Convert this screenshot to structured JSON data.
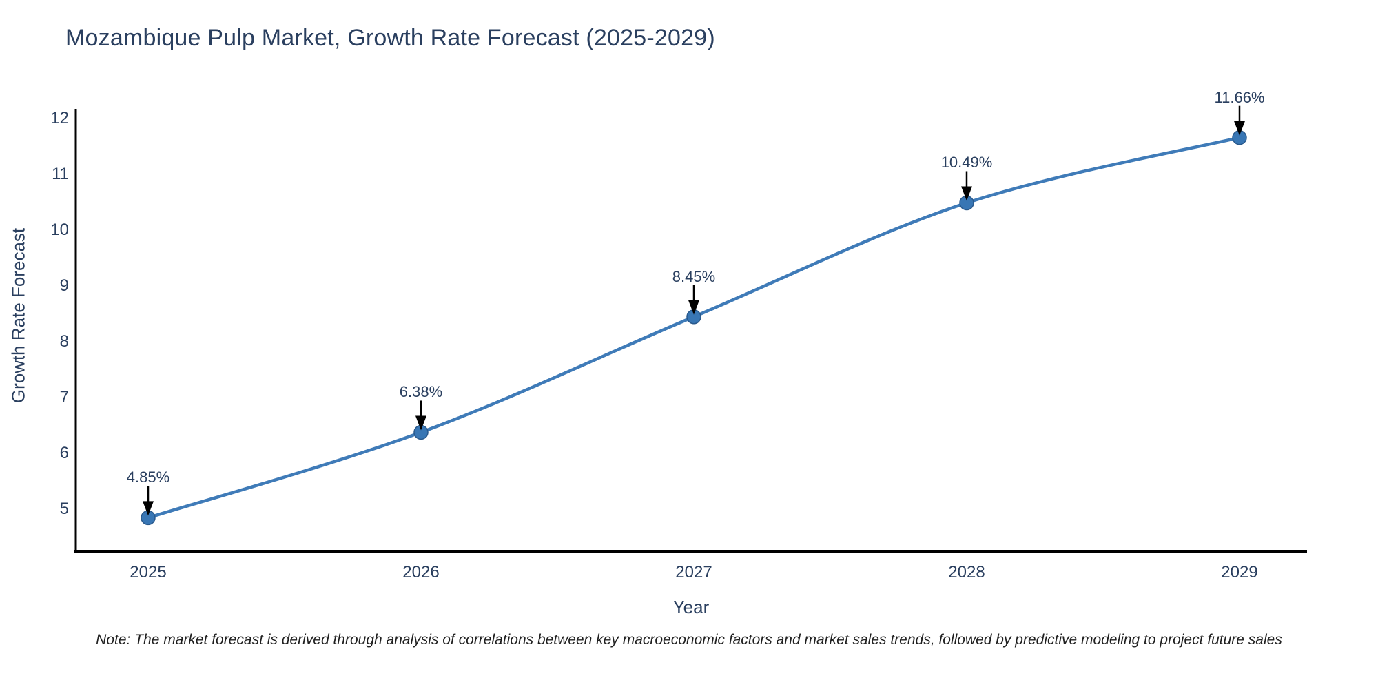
{
  "title": "Mozambique Pulp Market, Growth Rate Forecast (2025-2029)",
  "note": "Note: The market forecast is derived through analysis of correlations between key macroeconomic factors and market sales trends, followed by predictive modeling to project future sales",
  "colors": {
    "background": "#ffffff",
    "text": "#2a3f5f",
    "note_text": "#1f1f1f",
    "line": "#3f7bb8",
    "marker_fill": "#3876b4",
    "marker_edge": "#29598c",
    "axis": "#000000",
    "annotation_arrow": "#000000"
  },
  "chart_data": {
    "type": "line",
    "title": "Mozambique Pulp Market, Growth Rate Forecast (2025-2029)",
    "xlabel": "Year",
    "ylabel": "Growth Rate Forecast",
    "categories": [
      "2025",
      "2026",
      "2027",
      "2028",
      "2029"
    ],
    "series": [
      {
        "name": "Growth Rate Forecast",
        "values": [
          4.85,
          6.38,
          8.45,
          10.49,
          11.66
        ]
      }
    ],
    "point_labels": [
      "4.85%",
      "6.38%",
      "8.45%",
      "10.49%",
      "11.66%"
    ],
    "yticks": [
      5,
      6,
      7,
      8,
      9,
      10,
      11,
      12
    ],
    "ylim": [
      4.25,
      12.15
    ],
    "line_shape": "spline",
    "grid": false,
    "legend": "none",
    "markers": true,
    "annotations_arrow": true
  }
}
